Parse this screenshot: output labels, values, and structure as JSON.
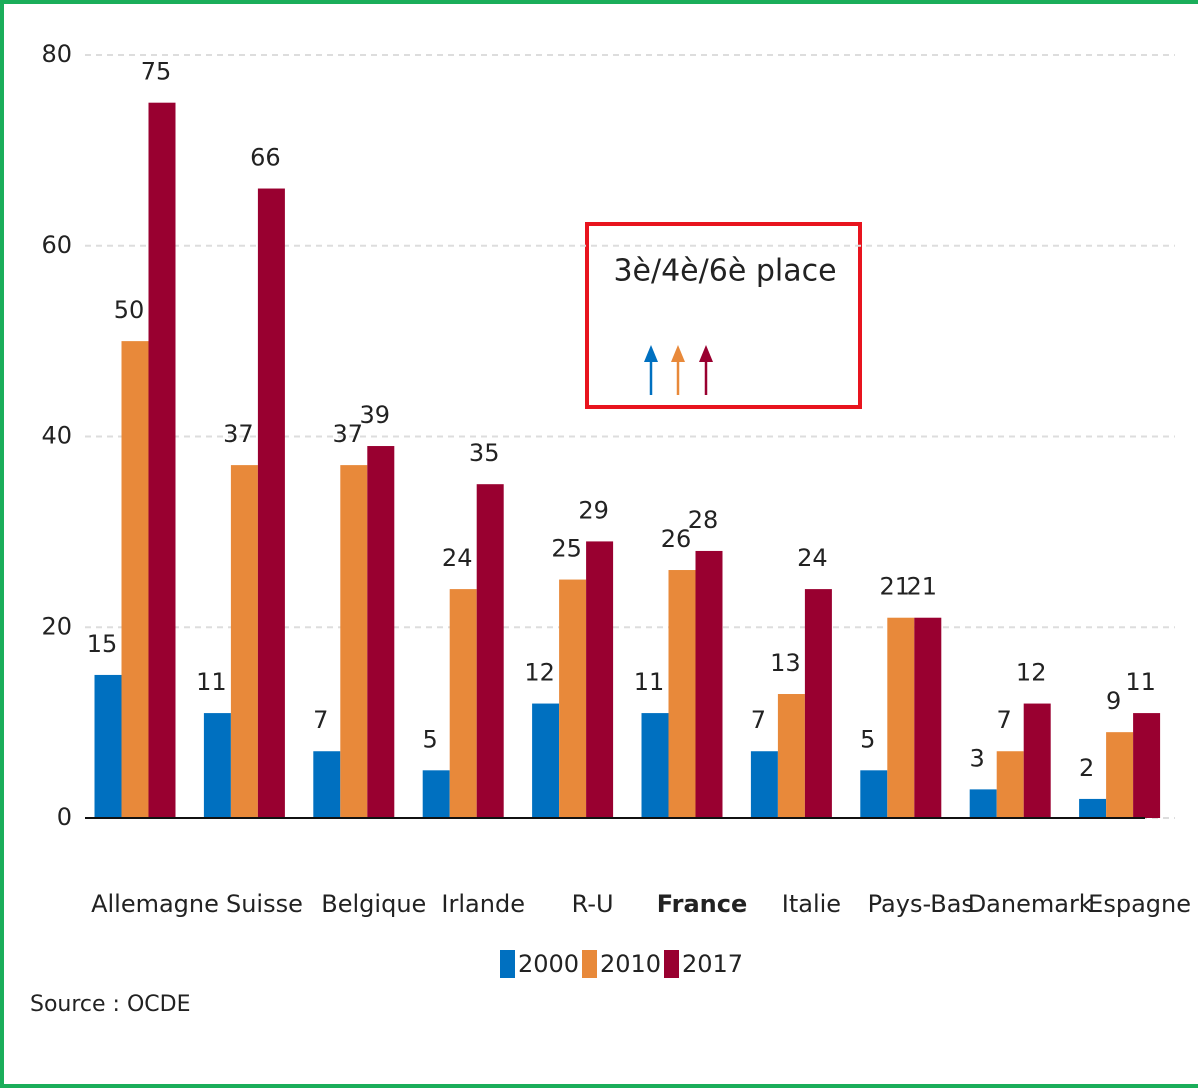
{
  "chart_data": {
    "type": "bar",
    "categories": [
      "Allemagne",
      "Suisse",
      "Belgique",
      "Irlande",
      "R-U",
      "France",
      "Italie",
      "Pays-Bas",
      "Danemark",
      "Espagne"
    ],
    "highlight": "France",
    "series": [
      {
        "name": "2000",
        "color": "#0070c0",
        "values": [
          15,
          11,
          7,
          5,
          12,
          11,
          7,
          5,
          3,
          2
        ]
      },
      {
        "name": "2010",
        "color": "#e8893a",
        "values": [
          50,
          37,
          37,
          24,
          25,
          26,
          13,
          21,
          7,
          9
        ]
      },
      {
        "name": "2017",
        "color": "#990030",
        "values": [
          75,
          66,
          39,
          35,
          29,
          28,
          24,
          21,
          12,
          11
        ]
      }
    ],
    "ylim": [
      0,
      80
    ],
    "yticks": [
      0,
      20,
      40,
      60,
      80
    ],
    "grid": true,
    "annotation": "3è/4è/6è place",
    "source": "Source : OCDE"
  }
}
